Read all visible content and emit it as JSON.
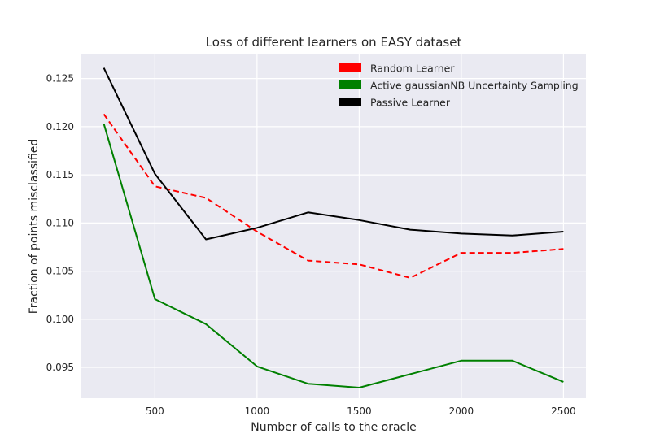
{
  "chart_data": {
    "type": "line",
    "title": "Loss of different learners on EASY dataset",
    "xlabel": "Number of calls to the oracle",
    "ylabel": "Fraction of points misclassified",
    "x": [
      250,
      500,
      750,
      1000,
      1250,
      1500,
      1750,
      2000,
      2250,
      2500
    ],
    "xlim": [
      140,
      2610
    ],
    "ylim": [
      0.0918,
      0.1275
    ],
    "xticks": [
      500,
      1000,
      1500,
      2000,
      2500
    ],
    "xtick_labels": [
      "500",
      "1000",
      "1500",
      "2000",
      "2500"
    ],
    "yticks": [
      0.095,
      0.1,
      0.105,
      0.11,
      0.115,
      0.12,
      0.125
    ],
    "ytick_labels": [
      "0.095",
      "0.100",
      "0.105",
      "0.110",
      "0.115",
      "0.120",
      "0.125"
    ],
    "grid": true,
    "legend_position": "top-right",
    "background_color": "#eaeaf2",
    "series": [
      {
        "name": "Random Learner",
        "color": "#ff0000",
        "dashed": true,
        "values": [
          0.1213,
          0.1138,
          0.1126,
          0.1091,
          0.1061,
          0.1057,
          0.1043,
          0.1069,
          0.1069,
          0.1073
        ]
      },
      {
        "name": "Active gaussianNB Uncertainty Sampling",
        "color": "#008000",
        "dashed": false,
        "values": [
          0.1203,
          0.1021,
          0.0995,
          0.0951,
          0.0933,
          0.0929,
          0.0943,
          0.0957,
          0.0957,
          0.0935
        ]
      },
      {
        "name": "Passive Learner",
        "color": "#000000",
        "dashed": false,
        "values": [
          0.1261,
          0.1151,
          0.1083,
          0.1095,
          0.1111,
          0.1103,
          0.1093,
          0.1089,
          0.1087,
          0.1091
        ]
      }
    ]
  }
}
